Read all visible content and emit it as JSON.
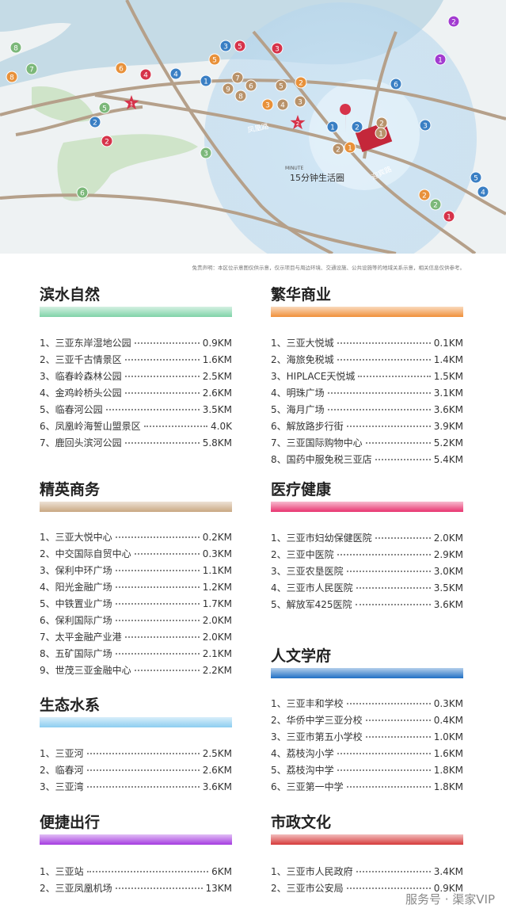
{
  "map": {
    "circle_label": "15分钟生活圈",
    "circle_sub": "MINUTE",
    "roads": [
      "凤凰路",
      "迎宾路"
    ],
    "stars": [
      "1",
      "2"
    ],
    "markers": [
      {
        "label": "2",
        "color": "#a23bd0"
      },
      {
        "label": "1",
        "color": "#a23bd0"
      },
      {
        "label": "8",
        "color": "#7cb87a"
      },
      {
        "label": "7",
        "color": "#7cb87a"
      },
      {
        "label": "8",
        "color": "#e8913a"
      },
      {
        "label": "6",
        "color": "#e8913a"
      },
      {
        "label": "4",
        "color": "#d6334a"
      },
      {
        "label": "4",
        "color": "#3a7fc4"
      },
      {
        "label": "5",
        "color": "#7cb87a"
      },
      {
        "label": "2",
        "color": "#3a7fc4"
      },
      {
        "label": "2",
        "color": "#d6334a"
      },
      {
        "label": "3",
        "color": "#7cb87a"
      },
      {
        "label": "6",
        "color": "#7cb87a"
      },
      {
        "label": "1",
        "color": "#3a7fc4"
      },
      {
        "label": "5",
        "color": "#e8913a"
      },
      {
        "label": "3",
        "color": "#3a7fc4"
      },
      {
        "label": "5",
        "color": "#d6334a"
      },
      {
        "label": "3",
        "color": "#d6334a"
      },
      {
        "label": "9",
        "color": "#b8926a"
      },
      {
        "label": "7",
        "color": "#b8926a"
      },
      {
        "label": "8",
        "color": "#b8926a"
      },
      {
        "label": "6",
        "color": "#b8926a"
      },
      {
        "label": "5",
        "color": "#b8926a"
      },
      {
        "label": "2",
        "color": "#e8913a"
      },
      {
        "label": "3",
        "color": "#e8913a"
      },
      {
        "label": "4",
        "color": "#b8926a"
      },
      {
        "label": "3",
        "color": "#b8926a"
      },
      {
        "label": "6",
        "color": "#3a7fc4"
      },
      {
        "label": "3",
        "color": "#3a7fc4"
      },
      {
        "label": "1",
        "color": "#3a7fc4"
      },
      {
        "label": "2",
        "color": "#3a7fc4"
      },
      {
        "label": "2",
        "color": "#b8926a"
      },
      {
        "label": "1",
        "color": "#b8926a"
      },
      {
        "label": "2",
        "color": "#b8926a"
      },
      {
        "label": "1",
        "color": "#e8913a"
      },
      {
        "label": "5",
        "color": "#3a7fc4"
      },
      {
        "label": "4",
        "color": "#3a7fc4"
      },
      {
        "label": "2",
        "color": "#e8913a"
      },
      {
        "label": "2",
        "color": "#7cb87a"
      },
      {
        "label": "1",
        "color": "#d6334a"
      }
    ]
  },
  "disclaimer": "免责声明：本区位示意图仅供示意，仅示项目与周边环境、交通设施、公共设施等的地域关系示意，相关信息仅供参考。",
  "sections": [
    {
      "title": "滨水自然",
      "color": "#7fd3a8",
      "items": [
        [
          "1、三亚东岸湿地公园",
          "0.9KM"
        ],
        [
          "2、三亚千古情景区",
          "1.6KM"
        ],
        [
          "3、临春岭森林公园",
          "2.5KM"
        ],
        [
          "4、金鸡岭桥头公园",
          "2.6KM"
        ],
        [
          "5、临春河公园",
          "3.5KM"
        ],
        [
          "6、凤凰岭海誓山盟景区",
          "4.0K"
        ],
        [
          "7、鹿回头滨河公园",
          "5.8KM"
        ]
      ]
    },
    {
      "title": "精英商务",
      "color": "#c9a882",
      "items": [
        [
          "1、三亚大悦中心",
          "0.2KM"
        ],
        [
          "2、中交国际自贸中心",
          "0.3KM"
        ],
        [
          "3、保利中环广场",
          "1.1KM"
        ],
        [
          "4、阳光金融广场",
          "1.2KM"
        ],
        [
          "5、中铁置业广场",
          "1.7KM"
        ],
        [
          "6、保利国际广场",
          "2.0KM"
        ],
        [
          "7、太平金融产业港",
          "2.0KM"
        ],
        [
          "8、五矿国际广场",
          "2.1KM"
        ],
        [
          "9、世茂三亚金融中心",
          "2.2KM"
        ]
      ]
    },
    {
      "title": "生态水系",
      "color": "#8ccdf0",
      "items": [
        [
          "1、三亚河",
          "2.5KM"
        ],
        [
          "2、临春河",
          "2.6KM"
        ],
        [
          "3、三亚湾",
          "3.6KM"
        ]
      ]
    },
    {
      "title": "便捷出行",
      "color": "#a53ce0",
      "items": [
        [
          "1、三亚站",
          "6KM"
        ],
        [
          "2、三亚凤凰机场",
          "13KM"
        ]
      ]
    },
    {
      "title": "繁华商业",
      "color": "#f0903a",
      "items": [
        [
          "1、三亚大悦城",
          "0.1KM"
        ],
        [
          "2、海旅免税城",
          "1.4KM"
        ],
        [
          "3、HIPLACE天悦城",
          "1.5KM"
        ],
        [
          "4、明珠广场",
          "3.1KM"
        ],
        [
          "5、海月广场",
          "3.6KM"
        ],
        [
          "6、解放路步行街",
          "3.9KM"
        ],
        [
          "7、三亚国际购物中心",
          "5.2KM"
        ],
        [
          "8、国药中服免税三亚店",
          "5.4KM"
        ]
      ]
    },
    {
      "title": "医疗健康",
      "color": "#e8336f",
      "items": [
        [
          "1、三亚市妇幼保健医院",
          "2.0KM"
        ],
        [
          "2、三亚中医院",
          "2.9KM"
        ],
        [
          "3、三亚农垦医院",
          "3.0KM"
        ],
        [
          "4、三亚市人民医院",
          "3.5KM"
        ],
        [
          "5、解放军425医院",
          "3.6KM"
        ]
      ]
    },
    {
      "title": "人文学府",
      "color": "#1f6fc4",
      "items": [
        [
          "1、三亚丰和学校",
          "0.3KM"
        ],
        [
          "2、华侨中学三亚分校",
          "0.4KM"
        ],
        [
          "3、三亚市第五小学校",
          "1.0KM"
        ],
        [
          "4、荔枝沟小学",
          "1.6KM"
        ],
        [
          "5、荔枝沟中学",
          "1.8KM"
        ],
        [
          "6、三亚第一中学",
          "1.8KM"
        ]
      ]
    },
    {
      "title": "市政文化",
      "color": "#d63a3a",
      "items": [
        [
          "1、三亚市人民政府",
          "3.4KM"
        ],
        [
          "2、三亚市公安局",
          "0.9KM"
        ]
      ]
    }
  ],
  "watermark": "服务号 · 渠家VIP"
}
